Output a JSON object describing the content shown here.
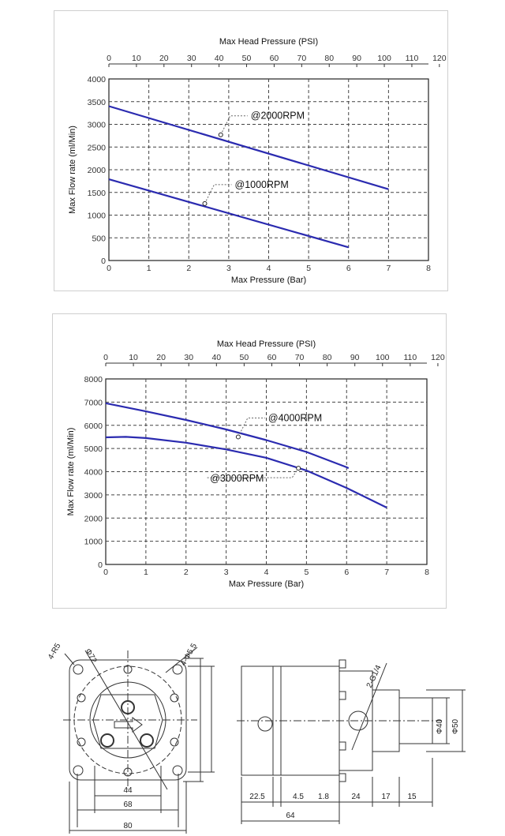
{
  "chart_data": [
    {
      "type": "line",
      "title": "",
      "top_axis_label": "Max Head Pressure (PSI)",
      "top_ticks": [
        "0",
        "10",
        "20",
        "30",
        "40",
        "50",
        "60",
        "70",
        "80",
        "90",
        "100",
        "110",
        "120"
      ],
      "xlabel": "Max Pressure (Bar)",
      "ylabel": "Max Flow rate (ml/Min)",
      "xlim": [
        0,
        8
      ],
      "ylim": [
        0,
        4000
      ],
      "x_ticks": [
        "0",
        "1",
        "2",
        "3",
        "4",
        "5",
        "6",
        "7",
        "8"
      ],
      "y_ticks": [
        "0",
        "500",
        "1000",
        "1500",
        "2000",
        "2500",
        "3000",
        "3500",
        "4000"
      ],
      "grid": true,
      "series": [
        {
          "name": "@2000RPM",
          "x": [
            0,
            7
          ],
          "y": [
            3400,
            1570
          ],
          "marker": [
            2.8,
            2770
          ]
        },
        {
          "name": "@1000RPM",
          "x": [
            0,
            6
          ],
          "y": [
            1790,
            290
          ],
          "marker": [
            2.4,
            1255
          ]
        }
      ],
      "line_color": "#2b2bb0"
    },
    {
      "type": "line",
      "title": "",
      "top_axis_label": "Max Head Pressure (PSI)",
      "top_ticks": [
        "0",
        "10",
        "20",
        "30",
        "40",
        "50",
        "60",
        "70",
        "80",
        "90",
        "100",
        "110",
        "120"
      ],
      "xlabel": "Max Pressure (Bar)",
      "ylabel": "Max Flow rate (ml/Min)",
      "xlim": [
        0,
        8
      ],
      "ylim": [
        0,
        8000
      ],
      "x_ticks": [
        "0",
        "1",
        "2",
        "3",
        "4",
        "5",
        "6",
        "7",
        "8"
      ],
      "y_ticks": [
        "0",
        "1000",
        "2000",
        "3000",
        "4000",
        "5000",
        "6000",
        "7000",
        "8000"
      ],
      "grid": true,
      "series": [
        {
          "name": "@4000RPM",
          "x": [
            0,
            1,
            2,
            3,
            4,
            5,
            6,
            6.05
          ],
          "y": [
            6950,
            6600,
            6230,
            5820,
            5360,
            4850,
            4190,
            4150
          ],
          "marker": [
            3.3,
            5500
          ]
        },
        {
          "name": "@3000RPM",
          "x": [
            0,
            0.5,
            1,
            2,
            3,
            4,
            5,
            6,
            7
          ],
          "y": [
            5480,
            5500,
            5450,
            5250,
            4960,
            4600,
            4050,
            3300,
            2450
          ],
          "marker": [
            4.8,
            4150
          ]
        }
      ],
      "line_color": "#2b2bb0"
    }
  ],
  "drawing": {
    "front_dims": {
      "d44": "44",
      "d68": "68",
      "d80": "80",
      "r5": "4-R5",
      "phi72": "Φ72",
      "hole": "4-Φ5.5"
    },
    "side_dims": {
      "a": "22.5",
      "b": "4.5",
      "c": "1.8",
      "d": "24",
      "e": "17",
      "f": "15",
      "total": "64",
      "port": "2-G1/4",
      "phi40": "Φ40",
      "phi50": "Φ50"
    }
  }
}
